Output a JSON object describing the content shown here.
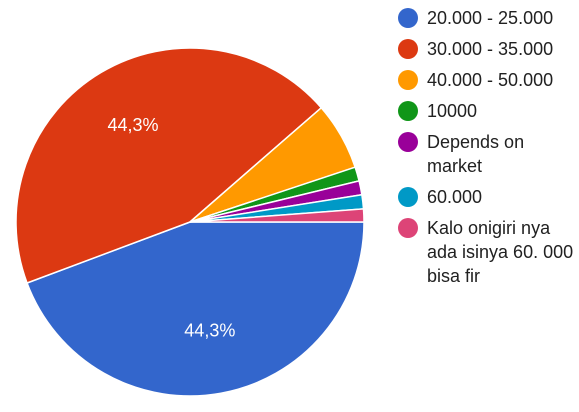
{
  "chart_data": {
    "type": "pie",
    "title": "",
    "slices": [
      {
        "label": "20.000 - 25.000",
        "value": 44.3,
        "color": "#3366cc",
        "data_label": "44,3%"
      },
      {
        "label": "30.000 - 35.000",
        "value": 44.3,
        "color": "#dc3912",
        "data_label": "44,3%"
      },
      {
        "label": "40.000 - 50.000",
        "value": 6.3,
        "color": "#ff9900",
        "data_label": ""
      },
      {
        "label": "10000",
        "value": 1.3,
        "color": "#109618",
        "data_label": ""
      },
      {
        "label": "Depends on market",
        "value": 1.3,
        "color": "#990099",
        "data_label": ""
      },
      {
        "label": "60.000",
        "value": 1.3,
        "color": "#0099c6",
        "data_label": ""
      },
      {
        "label": "Kalo onigiri nya ada isinya 60. 000 bisa fir",
        "value": 1.2,
        "color": "#dd4477",
        "data_label": ""
      }
    ],
    "legend_position": "right"
  }
}
